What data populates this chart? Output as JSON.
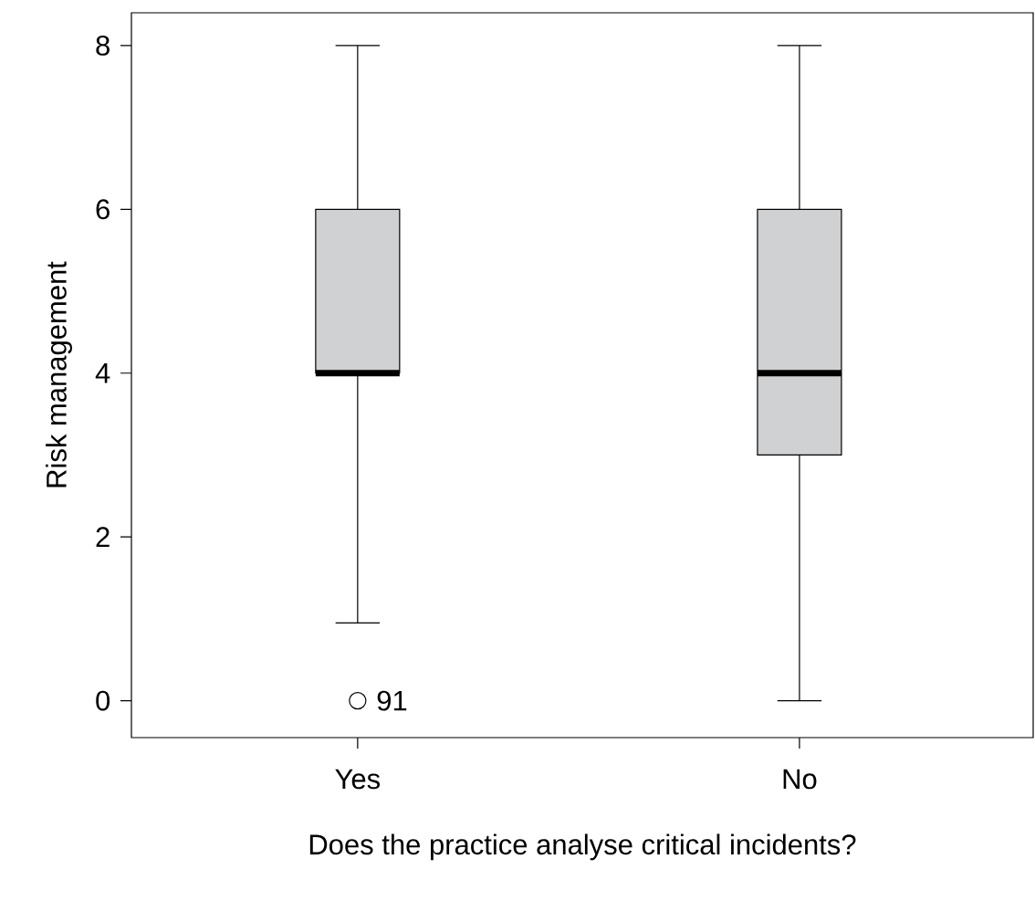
{
  "chart_data": {
    "type": "box",
    "xlabel": "Does the practice analyse critical incidents?",
    "ylabel": "Risk management",
    "categories": [
      "Yes",
      "No"
    ],
    "color": "#d0d1d3",
    "boxes": [
      {
        "low": 0.95,
        "q1": 4,
        "median": 4,
        "q3": 6,
        "high": 8,
        "outliers": [
          0
        ]
      },
      {
        "low": 0,
        "q1": 3,
        "median": 4,
        "q3": 6,
        "high": 8
      }
    ],
    "ylim": [
      -0.45,
      8.4
    ],
    "yticks": [
      0,
      2,
      4,
      6,
      8
    ],
    "annotations": [
      "91"
    ]
  }
}
